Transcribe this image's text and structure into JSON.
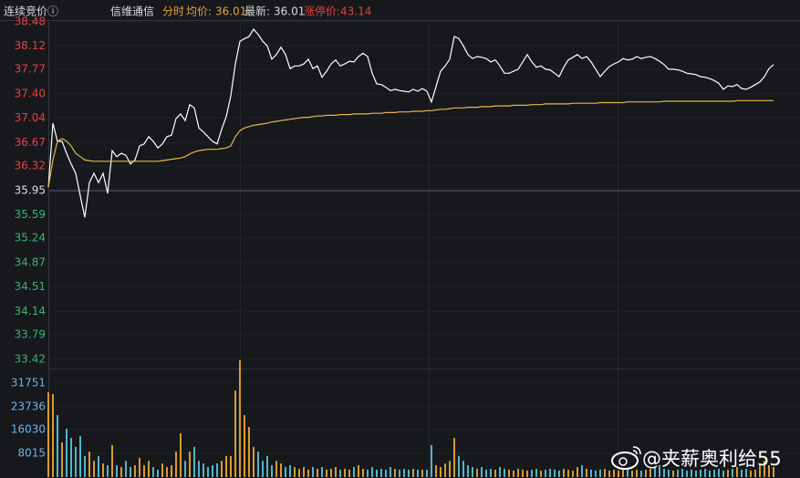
{
  "header": {
    "status": "连续竞价ⓘ",
    "stock": "信维通信",
    "mode": "分时",
    "avg_label": "均价:",
    "avg_value": 36.01,
    "last_label": "最新:",
    "last_value": 36.01,
    "limit_label": "涨停价:",
    "limit_value": 43.14
  },
  "watermark": "@夹薪奥利给55",
  "chart_data": [
    {
      "type": "line",
      "x": [
        0,
        1.5,
        3,
        4.5,
        6,
        7.5,
        9,
        10.5,
        12,
        13.5,
        15,
        16.5,
        18,
        19.5,
        21,
        22.5,
        24,
        25.5,
        27,
        28.5,
        30,
        31.5,
        33,
        34.5,
        36,
        37.5,
        39,
        40.5,
        42,
        43.5,
        45,
        46.5,
        48,
        49.5,
        51,
        52.5,
        54,
        55.5,
        57,
        58.5,
        60,
        61.5,
        63,
        64.5,
        66,
        67.5,
        69,
        70.5,
        72,
        73.5,
        75,
        76.5,
        78,
        79.5,
        81,
        82.5,
        84,
        85.5,
        87,
        88.5,
        90,
        91.5,
        93,
        94.5,
        96,
        97.5,
        99,
        100.5,
        102,
        103.5,
        105,
        106.5,
        108,
        109.5,
        111,
        112.5,
        114,
        115.5,
        117,
        118.5,
        120,
        121.5,
        123,
        124.5,
        126,
        127.5,
        129,
        130.5,
        132,
        133.5,
        135,
        136.5,
        138,
        139.5,
        141,
        142.5,
        144,
        145.5,
        147,
        148.5,
        150,
        151.5,
        153,
        154.5,
        156,
        157.5,
        159,
        160.5,
        162,
        163.5,
        165,
        166.5,
        168,
        169.5,
        171,
        172.5,
        174,
        175.5,
        177,
        178.5,
        180,
        181.5,
        183,
        184.5,
        186,
        187.5,
        189,
        190.5,
        192,
        193.5,
        195,
        196.5,
        198,
        199.5,
        201,
        202.5,
        204,
        205.5,
        207,
        208.5,
        210,
        211.5,
        213,
        214.5,
        216,
        217.5,
        219,
        220.5,
        222,
        223.5,
        225,
        226.5,
        228,
        229.5,
        231,
        232.5,
        234,
        235.5,
        237,
        238.5
      ],
      "xlim": [
        0,
        247.2
      ],
      "ylim": [
        33.42,
        38.48
      ],
      "yticks": [
        38.48,
        38.12,
        37.77,
        {
          "value": 37.4,
          "label": "37.40"
        },
        37.04,
        36.67,
        36.32,
        35.95,
        35.59,
        35.24,
        34.87,
        34.51,
        34.14,
        33.79,
        33.42
      ],
      "up_color": "#e84040",
      "flat_color": "#dddddd",
      "down_color": "#3cb371",
      "grid": true,
      "series": [
        {
          "color": "#ffffff",
          "values": [
            36.0,
            36.96,
            36.69,
            36.69,
            36.51,
            36.35,
            36.21,
            35.87,
            35.55,
            36.07,
            36.21,
            36.07,
            36.21,
            35.91,
            36.55,
            36.46,
            36.51,
            36.48,
            36.35,
            36.41,
            36.62,
            36.65,
            36.76,
            36.69,
            36.59,
            36.65,
            36.76,
            36.78,
            37.03,
            37.1,
            37.0,
            37.24,
            37.19,
            36.89,
            36.83,
            36.76,
            36.69,
            36.65,
            36.87,
            37.06,
            37.37,
            37.85,
            38.19,
            38.23,
            38.26,
            38.37,
            38.29,
            38.19,
            38.12,
            37.92,
            37.99,
            38.1,
            37.99,
            37.78,
            37.82,
            37.82,
            37.85,
            37.92,
            37.78,
            37.82,
            37.65,
            37.74,
            37.85,
            37.91,
            37.82,
            37.85,
            37.89,
            37.88,
            37.96,
            38.01,
            37.96,
            37.71,
            37.55,
            37.54,
            37.5,
            37.45,
            37.47,
            37.45,
            37.44,
            37.43,
            37.47,
            37.44,
            37.48,
            37.44,
            37.28,
            37.51,
            37.74,
            37.82,
            37.92,
            38.26,
            38.23,
            38.12,
            37.99,
            37.93,
            37.96,
            37.95,
            37.93,
            37.88,
            37.91,
            37.82,
            37.71,
            37.71,
            37.74,
            37.77,
            37.88,
            37.99,
            37.88,
            37.8,
            37.82,
            37.77,
            37.76,
            37.71,
            37.66,
            37.8,
            37.91,
            37.95,
            37.99,
            37.93,
            37.96,
            37.88,
            37.77,
            37.66,
            37.74,
            37.81,
            37.85,
            37.88,
            37.93,
            37.91,
            37.92,
            37.96,
            37.93,
            37.95,
            37.96,
            37.93,
            37.89,
            37.84,
            37.77,
            37.77,
            37.76,
            37.74,
            37.71,
            37.7,
            37.69,
            37.66,
            37.65,
            37.63,
            37.6,
            37.56,
            37.47,
            37.52,
            37.51,
            37.54,
            37.48,
            37.47,
            37.5,
            37.54,
            37.58,
            37.66,
            37.78,
            37.84
          ]
        },
        {
          "color": "#e6b450",
          "values": [
            36.0,
            36.41,
            36.69,
            36.73,
            36.69,
            36.62,
            36.51,
            36.46,
            36.41,
            36.4,
            36.39,
            36.39,
            36.39,
            36.39,
            36.39,
            36.39,
            36.39,
            36.39,
            36.39,
            36.39,
            36.39,
            36.39,
            36.39,
            36.39,
            36.39,
            36.4,
            36.41,
            36.42,
            36.43,
            36.44,
            36.46,
            36.5,
            36.53,
            36.55,
            36.56,
            36.57,
            36.57,
            36.57,
            36.58,
            36.59,
            36.62,
            36.76,
            36.85,
            36.89,
            36.91,
            36.93,
            36.94,
            36.95,
            36.96,
            36.98,
            36.99,
            37.0,
            37.01,
            37.02,
            37.03,
            37.04,
            37.05,
            37.05,
            37.06,
            37.07,
            37.07,
            37.08,
            37.08,
            37.08,
            37.09,
            37.09,
            37.09,
            37.1,
            37.1,
            37.1,
            37.1,
            37.11,
            37.11,
            37.11,
            37.12,
            37.12,
            37.12,
            37.13,
            37.13,
            37.13,
            37.14,
            37.14,
            37.14,
            37.15,
            37.15,
            37.16,
            37.17,
            37.17,
            37.18,
            37.19,
            37.19,
            37.19,
            37.2,
            37.2,
            37.2,
            37.21,
            37.21,
            37.21,
            37.22,
            37.22,
            37.22,
            37.22,
            37.23,
            37.23,
            37.23,
            37.23,
            37.24,
            37.24,
            37.24,
            37.25,
            37.25,
            37.25,
            37.25,
            37.25,
            37.25,
            37.26,
            37.26,
            37.26,
            37.26,
            37.26,
            37.26,
            37.27,
            37.27,
            37.27,
            37.27,
            37.27,
            37.27,
            37.28,
            37.28,
            37.28,
            37.28,
            37.28,
            37.28,
            37.28,
            37.28,
            37.29,
            37.29,
            37.29,
            37.29,
            37.29,
            37.29,
            37.29,
            37.29,
            37.29,
            37.29,
            37.29,
            37.29,
            37.29,
            37.29,
            37.29,
            37.29,
            37.3,
            37.3,
            37.3,
            37.3,
            37.3,
            37.3,
            37.3,
            37.3,
            37.3
          ]
        }
      ]
    },
    {
      "type": "bar",
      "x": [
        0,
        1.5,
        3,
        4.5,
        6,
        7.5,
        9,
        10.5,
        12,
        13.5,
        15,
        16.5,
        18,
        19.5,
        21,
        22.5,
        24,
        25.5,
        27,
        28.5,
        30,
        31.5,
        33,
        34.5,
        36,
        37.5,
        39,
        40.5,
        42,
        43.5,
        45,
        46.5,
        48,
        49.5,
        51,
        52.5,
        54,
        55.5,
        57,
        58.5,
        60,
        61.5,
        63,
        64.5,
        66,
        67.5,
        69,
        70.5,
        72,
        73.5,
        75,
        76.5,
        78,
        79.5,
        81,
        82.5,
        84,
        85.5,
        87,
        88.5,
        90,
        91.5,
        93,
        94.5,
        96,
        97.5,
        99,
        100.5,
        102,
        103.5,
        105,
        106.5,
        108,
        109.5,
        111,
        112.5,
        114,
        115.5,
        117,
        118.5,
        120,
        121.5,
        123,
        124.5,
        126,
        127.5,
        129,
        130.5,
        132,
        133.5,
        135,
        136.5,
        138,
        139.5,
        141,
        142.5,
        144,
        145.5,
        147,
        148.5,
        150,
        151.5,
        153,
        154.5,
        156,
        157.5,
        159,
        160.5,
        162,
        163.5,
        165,
        166.5,
        168,
        169.5,
        171,
        172.5,
        174,
        175.5,
        177,
        178.5,
        180,
        181.5,
        183,
        184.5,
        186,
        187.5,
        189,
        190.5,
        192,
        193.5,
        195,
        196.5,
        198,
        199.5,
        201,
        202.5,
        204,
        205.5,
        207,
        208.5,
        210,
        211.5,
        213,
        214.5,
        216,
        217.5,
        219,
        220.5,
        222,
        223.5,
        225,
        226.5,
        228,
        229.5,
        231,
        232.5,
        234,
        235.5,
        237,
        238.5
      ],
      "xlim": [
        0,
        247.2
      ],
      "ylim": [
        0,
        40000
      ],
      "yticks": [
        31751,
        23736,
        16030,
        8015
      ],
      "tick_color": "#6fb3e8",
      "up_color": "#d89b2a",
      "down_color": "#4fb6c8",
      "values": [
        28600,
        28000,
        20900,
        11700,
        16300,
        13200,
        10200,
        13800,
        7100,
        8600,
        5500,
        7100,
        4600,
        4000,
        10800,
        4000,
        3400,
        5500,
        3400,
        4000,
        6500,
        4000,
        5500,
        3400,
        2500,
        4600,
        3400,
        4000,
        8600,
        14800,
        5500,
        8600,
        10200,
        5500,
        4600,
        3400,
        4000,
        4600,
        5500,
        7100,
        7100,
        29200,
        39400,
        20900,
        16900,
        10200,
        8600,
        5500,
        7100,
        4000,
        5500,
        4600,
        3400,
        4000,
        3400,
        2800,
        3400,
        2500,
        3400,
        2800,
        3400,
        2500,
        2800,
        3400,
        2500,
        2800,
        2500,
        3400,
        4000,
        2800,
        2500,
        3400,
        2500,
        2800,
        2500,
        3400,
        2800,
        2500,
        2800,
        2500,
        2800,
        2500,
        2500,
        2500,
        10800,
        4000,
        3400,
        4600,
        5500,
        13200,
        7100,
        5500,
        4000,
        3400,
        2800,
        3400,
        2500,
        2800,
        2500,
        3400,
        2800,
        2500,
        2200,
        2800,
        2500,
        2200,
        2500,
        2800,
        2200,
        2500,
        2800,
        2500,
        2200,
        2800,
        2500,
        2200,
        3400,
        4000,
        2800,
        2500,
        2200,
        2500,
        2800,
        2200,
        2500,
        2200,
        2500,
        2800,
        2200,
        2500,
        2200,
        2500,
        2800,
        3400,
        4000,
        2800,
        2500,
        2200,
        2500,
        2800,
        2200,
        2500,
        2200,
        2500,
        2800,
        2200,
        2500,
        2800,
        2200,
        2500,
        2800,
        3400,
        2500,
        2800,
        2200,
        2500,
        4000,
        5500,
        4000,
        3400
      ]
    }
  ]
}
